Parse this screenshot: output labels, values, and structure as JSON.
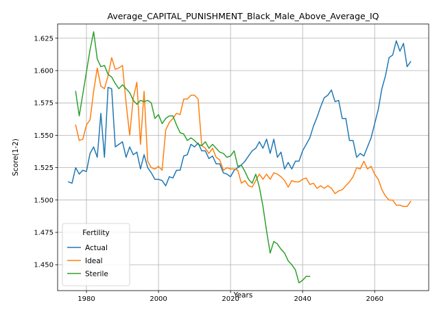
{
  "chart_data": {
    "type": "line",
    "title": "Average_CAPITAL_PUNISHMENT_Black_Male_Above_Average_IQ",
    "xlabel": "Years",
    "ylabel": "Score(1-2)",
    "xlim": [
      1972,
      2075
    ],
    "ylim": [
      1.43,
      1.636
    ],
    "xticks": [
      1980,
      2000,
      2020,
      2040,
      2060
    ],
    "yticks": [
      1.45,
      1.475,
      1.5,
      1.525,
      1.55,
      1.575,
      1.6,
      1.625
    ],
    "ytick_labels": [
      "1.450",
      "1.475",
      "1.500",
      "1.525",
      "1.550",
      "1.575",
      "1.600",
      "1.625"
    ],
    "grid": true,
    "legend": {
      "title": "Fertility",
      "placement": "lower-left"
    },
    "series": [
      {
        "name": "Actual",
        "color": "#1f77b4",
        "x": [
          1975,
          1976,
          1977,
          1978,
          1979,
          1980,
          1981,
          1982,
          1983,
          1984,
          1985,
          1986,
          1987,
          1988,
          1989,
          1990,
          1991,
          1992,
          1993,
          1994,
          1995,
          1996,
          1997,
          1998,
          1999,
          2000,
          2001,
          2002,
          2003,
          2004,
          2005,
          2006,
          2007,
          2008,
          2009,
          2010,
          2011,
          2012,
          2013,
          2014,
          2015,
          2016,
          2017,
          2018,
          2019,
          2020,
          2021,
          2022,
          2023,
          2024,
          2025,
          2026,
          2027,
          2028,
          2029,
          2030,
          2031,
          2032,
          2033,
          2034,
          2035,
          2036,
          2037,
          2038,
          2039,
          2040,
          2041,
          2042,
          2043,
          2044,
          2045,
          2046,
          2047,
          2048,
          2049,
          2050,
          2051,
          2052,
          2053,
          2054,
          2055,
          2056,
          2057,
          2058,
          2059,
          2060,
          2061,
          2062,
          2063,
          2064,
          2065,
          2066,
          2067,
          2068,
          2069,
          2070
        ],
        "values": [
          1.514,
          1.513,
          1.525,
          1.52,
          1.523,
          1.522,
          1.536,
          1.541,
          1.533,
          1.567,
          1.533,
          1.587,
          1.586,
          1.541,
          1.543,
          1.545,
          1.533,
          1.541,
          1.535,
          1.537,
          1.524,
          1.535,
          1.525,
          1.521,
          1.516,
          1.516,
          1.515,
          1.511,
          1.518,
          1.517,
          1.523,
          1.523,
          1.534,
          1.535,
          1.543,
          1.541,
          1.544,
          1.538,
          1.538,
          1.532,
          1.534,
          1.528,
          1.528,
          1.521,
          1.52,
          1.518,
          1.523,
          1.525,
          1.527,
          1.53,
          1.534,
          1.538,
          1.54,
          1.545,
          1.54,
          1.547,
          1.536,
          1.547,
          1.533,
          1.537,
          1.524,
          1.529,
          1.524,
          1.53,
          1.53,
          1.538,
          1.543,
          1.548,
          1.557,
          1.564,
          1.572,
          1.579,
          1.581,
          1.585,
          1.576,
          1.577,
          1.563,
          1.563,
          1.546,
          1.546,
          1.533,
          1.536,
          1.534,
          1.541,
          1.548,
          1.559,
          1.57,
          1.586,
          1.596,
          1.61,
          1.612,
          1.623,
          1.615,
          1.621,
          1.603,
          1.607
        ]
      },
      {
        "name": "Ideal",
        "color": "#ff7f0e",
        "x": [
          1977,
          1978,
          1979,
          1980,
          1981,
          1982,
          1983,
          1984,
          1985,
          1986,
          1987,
          1988,
          1989,
          1990,
          1991,
          1992,
          1993,
          1994,
          1995,
          1996,
          1997,
          1998,
          1999,
          2000,
          2001,
          2002,
          2003,
          2004,
          2005,
          2006,
          2007,
          2008,
          2009,
          2010,
          2011,
          2012,
          2013,
          2014,
          2015,
          2016,
          2017,
          2018,
          2019,
          2020,
          2021,
          2022,
          2023,
          2024,
          2025,
          2026,
          2027,
          2028,
          2029,
          2030,
          2031,
          2032,
          2033,
          2034,
          2035,
          2036,
          2037,
          2038,
          2039,
          2040,
          2041,
          2042,
          2043,
          2044,
          2045,
          2046,
          2047,
          2048,
          2049,
          2050,
          2051,
          2052,
          2053,
          2054,
          2055,
          2056,
          2057,
          2058,
          2059,
          2060,
          2061,
          2062,
          2063,
          2064,
          2065,
          2066,
          2067,
          2068,
          2069,
          2070
        ],
        "values": [
          1.558,
          1.546,
          1.547,
          1.558,
          1.562,
          1.584,
          1.602,
          1.588,
          1.586,
          1.596,
          1.61,
          1.601,
          1.602,
          1.604,
          1.575,
          1.55,
          1.579,
          1.591,
          1.543,
          1.584,
          1.53,
          1.525,
          1.524,
          1.526,
          1.523,
          1.554,
          1.56,
          1.563,
          1.567,
          1.566,
          1.578,
          1.578,
          1.581,
          1.581,
          1.578,
          1.542,
          1.54,
          1.536,
          1.54,
          1.533,
          1.531,
          1.523,
          1.525,
          1.524,
          1.524,
          1.523,
          1.513,
          1.515,
          1.511,
          1.51,
          1.515,
          1.52,
          1.516,
          1.52,
          1.516,
          1.521,
          1.52,
          1.518,
          1.515,
          1.51,
          1.515,
          1.514,
          1.514,
          1.516,
          1.517,
          1.512,
          1.513,
          1.509,
          1.511,
          1.509,
          1.511,
          1.509,
          1.505,
          1.507,
          1.508,
          1.511,
          1.514,
          1.518,
          1.525,
          1.524,
          1.53,
          1.524,
          1.526,
          1.52,
          1.516,
          1.508,
          1.503,
          1.5,
          1.5,
          1.496,
          1.496,
          1.495,
          1.495,
          1.499
        ]
      },
      {
        "name": "Sterile",
        "color": "#2ca02c",
        "x": [
          1977,
          1978,
          1979,
          1980,
          1981,
          1982,
          1983,
          1984,
          1985,
          1986,
          1987,
          1988,
          1989,
          1990,
          1991,
          1992,
          1993,
          1994,
          1995,
          1996,
          1997,
          1998,
          1999,
          2000,
          2001,
          2002,
          2003,
          2004,
          2005,
          2006,
          2007,
          2008,
          2009,
          2010,
          2011,
          2012,
          2013,
          2014,
          2015,
          2016,
          2017,
          2018,
          2019,
          2020,
          2021,
          2022,
          2023,
          2024,
          2025,
          2026,
          2027,
          2028,
          2029,
          2030,
          2031,
          2032,
          2033,
          2034,
          2035,
          2036,
          2037,
          2038,
          2039,
          2040,
          2041,
          2042
        ],
        "values": [
          1.584,
          1.565,
          1.582,
          1.599,
          1.616,
          1.63,
          1.609,
          1.603,
          1.604,
          1.597,
          1.595,
          1.59,
          1.586,
          1.589,
          1.586,
          1.583,
          1.577,
          1.574,
          1.577,
          1.576,
          1.577,
          1.575,
          1.563,
          1.566,
          1.559,
          1.563,
          1.565,
          1.565,
          1.558,
          1.552,
          1.551,
          1.546,
          1.548,
          1.546,
          1.543,
          1.542,
          1.545,
          1.54,
          1.543,
          1.54,
          1.537,
          1.536,
          1.533,
          1.534,
          1.538,
          1.526,
          1.527,
          1.522,
          1.516,
          1.513,
          1.52,
          1.51,
          1.495,
          1.476,
          1.459,
          1.468,
          1.466,
          1.462,
          1.459,
          1.453,
          1.45,
          1.446,
          1.436,
          1.438,
          1.441,
          1.441
        ]
      }
    ]
  }
}
